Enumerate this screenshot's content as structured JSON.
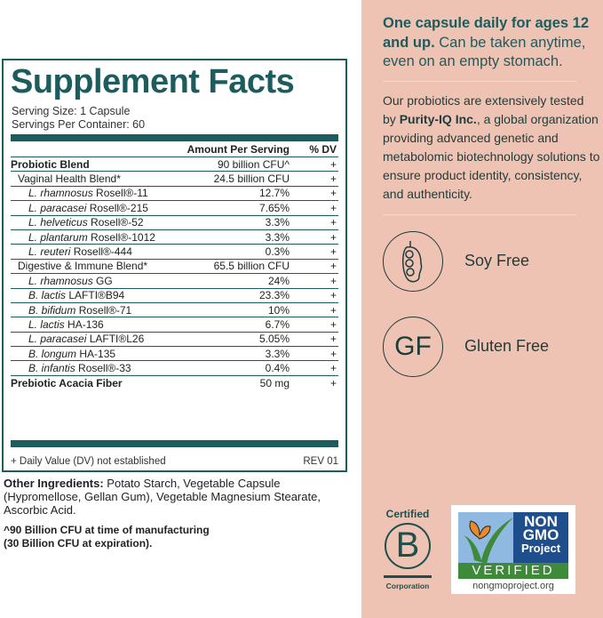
{
  "facts": {
    "title": "Supplement Facts",
    "serving_size": "Serving Size: 1 Capsule",
    "servings_per_container": "Servings Per Container: 60",
    "col_amount": "Amount Per Serving",
    "col_dv": "% DV",
    "rows": [
      {
        "name": "Probiotic Blend",
        "amount": "90 billion CFU^",
        "dv": "+",
        "level": 0
      },
      {
        "name": "Vaginal Health Blend*",
        "amount": "24.5 billion CFU",
        "dv": "+",
        "level": 1
      },
      {
        "species": "L. rhamnosus",
        "strain": " Rosell®-11",
        "amount": "12.7%",
        "dv": "+",
        "level": 2
      },
      {
        "species": "L. paracasei",
        "strain": " Rosell®-215",
        "amount": "7.65%",
        "dv": "+",
        "level": 2
      },
      {
        "species": "L. helveticus",
        "strain": " Rosell®-52",
        "amount": "3.3%",
        "dv": "+",
        "level": 2
      },
      {
        "species": "L. plantarum",
        "strain": " Rosell®-1012",
        "amount": "3.3%",
        "dv": "+",
        "level": 2
      },
      {
        "species": "L. reuteri",
        "strain": " Rosell®-444",
        "amount": "0.3%",
        "dv": "+",
        "level": 2
      },
      {
        "name": "Digestive & Immune Blend*",
        "amount": "65.5 billion CFU",
        "dv": "+",
        "level": 1
      },
      {
        "species": "L. rhamnosus",
        "strain": " GG",
        "amount": "24%",
        "dv": "+",
        "level": 2
      },
      {
        "species": "B. lactis",
        "strain": " LAFTI®B94",
        "amount": "23.3%",
        "dv": "+",
        "level": 2
      },
      {
        "species": "B. bifidum",
        "strain": " Rosell®-71",
        "amount": "10%",
        "dv": "+",
        "level": 2
      },
      {
        "species": "L. lactis",
        "strain": " HA-136",
        "amount": "6.7%",
        "dv": "+",
        "level": 2
      },
      {
        "species": "L. paracasei",
        "strain": " LAFTI®L26",
        "amount": "5.05%",
        "dv": "+",
        "level": 2
      },
      {
        "species": "B. longum",
        "strain": " HA-135",
        "amount": "3.3%",
        "dv": "+",
        "level": 2
      },
      {
        "species": "B. infantis",
        "strain": " Rosell®-33",
        "amount": "0.4%",
        "dv": "+",
        "level": 2
      },
      {
        "name": "Prebiotic Acacia Fiber",
        "amount": "50 mg",
        "dv": "+",
        "level": 0
      }
    ],
    "footnote": "+ Daily Value (DV) not established",
    "rev": "REV 01"
  },
  "other_label": "Other Ingredients:",
  "other_text": " Potato Starch, Vegetable Capsule (Hypromellose, Gellan Gum), Vegetable Magnesium Stearate, Ascorbic Acid.",
  "note_line1": "^90 Billion CFU at time of manufacturing",
  "note_line2": "(30 Billion CFU at expiration).",
  "right": {
    "head_bold": "One capsule daily for ages 12 and up.",
    "head_rest": " Can be taken anytime, even on an empty stomach.",
    "para_1": "Our probiotics are extensively tested by ",
    "para_bold": "Purity-IQ Inc.",
    "para_2": ", a global organization providing advanced genetic and metabolomic biotechnology solutions to ensure product identity, consistency, and authenticity.",
    "features": [
      {
        "icon": "soybean-icon",
        "label": "Soy Free"
      },
      {
        "icon": "gf-icon",
        "icon_text": "GF",
        "label": "Gluten Free"
      }
    ],
    "bcorp": {
      "top": "Certified",
      "letter": "B",
      "bottom": "Corporation"
    },
    "ngmo": {
      "l1": "NON",
      "l2": "GMO",
      "l3": "Project",
      "verified": "VERIFIED",
      "url": "nongmoproject.org"
    }
  },
  "colors": {
    "teal": "#1d5c5d",
    "pink": "#efc3b3",
    "ngmo_blue": "#1f4e8c",
    "ngmo_green": "#3f8a3a"
  }
}
